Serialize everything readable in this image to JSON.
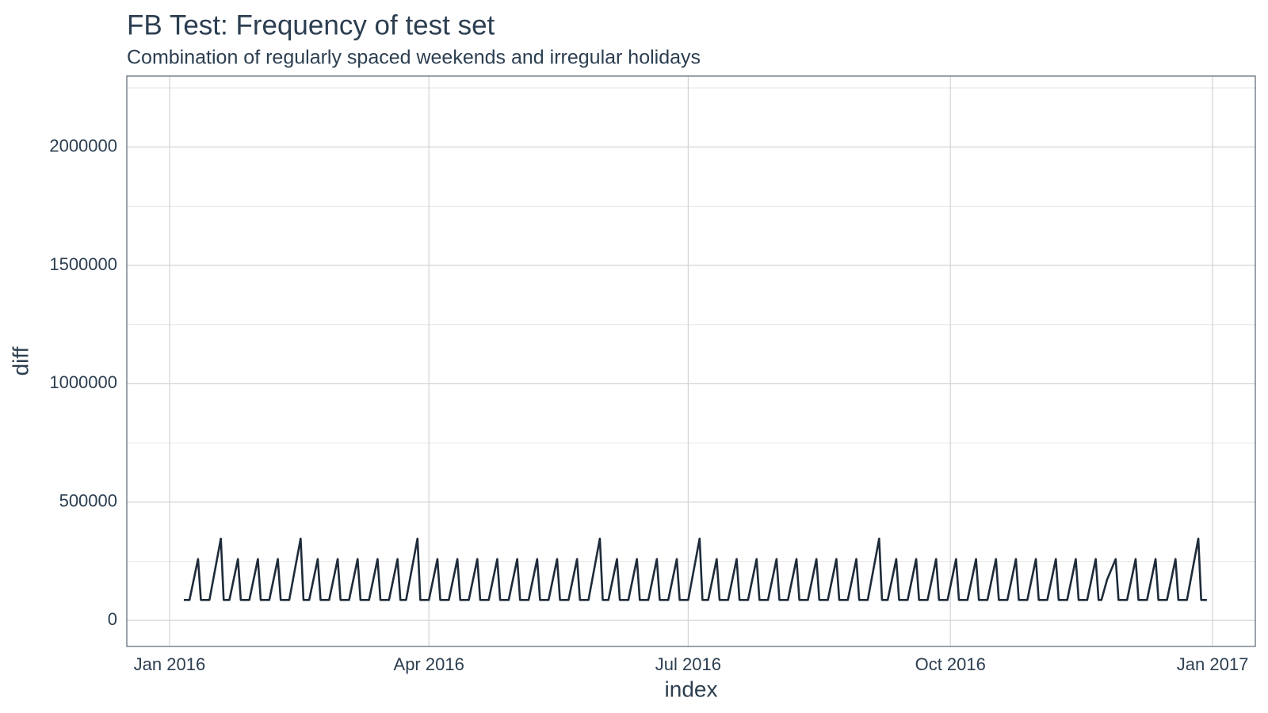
{
  "chart_data": {
    "type": "line",
    "title": "FB Test: Frequency of test set",
    "subtitle": "Combination of regularly spaced weekends and irregular holidays",
    "xlabel": "index",
    "ylabel": "diff",
    "color": "#1e2b3a",
    "grid": true,
    "xlim": [
      "2015-12-17",
      "2017-01-16"
    ],
    "xticks": [
      {
        "value": "2016-01-01",
        "label": "Jan 2016"
      },
      {
        "value": "2016-04-01",
        "label": "Apr 2016"
      },
      {
        "value": "2016-07-01",
        "label": "Jul 2016"
      },
      {
        "value": "2016-10-01",
        "label": "Oct 2016"
      },
      {
        "value": "2017-01-01",
        "label": "Jan 2017"
      }
    ],
    "ylim": [
      -110000,
      2300000
    ],
    "yticks": [
      0,
      500000,
      1000000,
      1500000,
      2000000
    ],
    "x": [
      "2016-01-06",
      "2016-01-07",
      "2016-01-08",
      "2016-01-11",
      "2016-01-12",
      "2016-01-13",
      "2016-01-14",
      "2016-01-15",
      "2016-01-19",
      "2016-01-20",
      "2016-01-21",
      "2016-01-22",
      "2016-01-25",
      "2016-01-26",
      "2016-01-27",
      "2016-01-28",
      "2016-01-29",
      "2016-02-01",
      "2016-02-02",
      "2016-02-03",
      "2016-02-04",
      "2016-02-05",
      "2016-02-08",
      "2016-02-09",
      "2016-02-10",
      "2016-02-11",
      "2016-02-12",
      "2016-02-16",
      "2016-02-17",
      "2016-02-18",
      "2016-02-19",
      "2016-02-22",
      "2016-02-23",
      "2016-02-24",
      "2016-02-25",
      "2016-02-26",
      "2016-02-29",
      "2016-03-01",
      "2016-03-02",
      "2016-03-03",
      "2016-03-04",
      "2016-03-07",
      "2016-03-08",
      "2016-03-09",
      "2016-03-10",
      "2016-03-11",
      "2016-03-14",
      "2016-03-15",
      "2016-03-16",
      "2016-03-17",
      "2016-03-18",
      "2016-03-21",
      "2016-03-22",
      "2016-03-23",
      "2016-03-24",
      "2016-03-28",
      "2016-03-29",
      "2016-03-30",
      "2016-03-31",
      "2016-04-01",
      "2016-04-04",
      "2016-04-05",
      "2016-04-06",
      "2016-04-07",
      "2016-04-08",
      "2016-04-11",
      "2016-04-12",
      "2016-04-13",
      "2016-04-14",
      "2016-04-15",
      "2016-04-18",
      "2016-04-19",
      "2016-04-20",
      "2016-04-21",
      "2016-04-22",
      "2016-04-25",
      "2016-04-26",
      "2016-04-27",
      "2016-04-28",
      "2016-04-29",
      "2016-05-02",
      "2016-05-03",
      "2016-05-04",
      "2016-05-05",
      "2016-05-06",
      "2016-05-09",
      "2016-05-10",
      "2016-05-11",
      "2016-05-12",
      "2016-05-13",
      "2016-05-16",
      "2016-05-17",
      "2016-05-18",
      "2016-05-19",
      "2016-05-20",
      "2016-05-23",
      "2016-05-24",
      "2016-05-25",
      "2016-05-26",
      "2016-05-27",
      "2016-05-31",
      "2016-06-01",
      "2016-06-02",
      "2016-06-03",
      "2016-06-06",
      "2016-06-07",
      "2016-06-08",
      "2016-06-09",
      "2016-06-10",
      "2016-06-13",
      "2016-06-14",
      "2016-06-15",
      "2016-06-16",
      "2016-06-17",
      "2016-06-20",
      "2016-06-21",
      "2016-06-22",
      "2016-06-23",
      "2016-06-24",
      "2016-06-27",
      "2016-06-28",
      "2016-06-29",
      "2016-06-30",
      "2016-07-01",
      "2016-07-05",
      "2016-07-06",
      "2016-07-07",
      "2016-07-08",
      "2016-07-11",
      "2016-07-12",
      "2016-07-13",
      "2016-07-14",
      "2016-07-15",
      "2016-07-18",
      "2016-07-19",
      "2016-07-20",
      "2016-07-21",
      "2016-07-22",
      "2016-07-25",
      "2016-07-26",
      "2016-07-27",
      "2016-07-28",
      "2016-07-29",
      "2016-08-01",
      "2016-08-02",
      "2016-08-03",
      "2016-08-04",
      "2016-08-05",
      "2016-08-08",
      "2016-08-09",
      "2016-08-10",
      "2016-08-11",
      "2016-08-12",
      "2016-08-15",
      "2016-08-16",
      "2016-08-17",
      "2016-08-18",
      "2016-08-19",
      "2016-08-22",
      "2016-08-23",
      "2016-08-24",
      "2016-08-25",
      "2016-08-26",
      "2016-08-29",
      "2016-08-30",
      "2016-08-31",
      "2016-09-01",
      "2016-09-02",
      "2016-09-06",
      "2016-09-07",
      "2016-09-08",
      "2016-09-09",
      "2016-09-12",
      "2016-09-13",
      "2016-09-14",
      "2016-09-15",
      "2016-09-16",
      "2016-09-19",
      "2016-09-20",
      "2016-09-21",
      "2016-09-22",
      "2016-09-23",
      "2016-09-26",
      "2016-09-27",
      "2016-09-28",
      "2016-09-29",
      "2016-09-30",
      "2016-10-03",
      "2016-10-04",
      "2016-10-05",
      "2016-10-06",
      "2016-10-07",
      "2016-10-10",
      "2016-10-11",
      "2016-10-12",
      "2016-10-13",
      "2016-10-14",
      "2016-10-17",
      "2016-10-18",
      "2016-10-19",
      "2016-10-20",
      "2016-10-21",
      "2016-10-24",
      "2016-10-25",
      "2016-10-26",
      "2016-10-27",
      "2016-10-28",
      "2016-10-31",
      "2016-11-01",
      "2016-11-02",
      "2016-11-03",
      "2016-11-04",
      "2016-11-07",
      "2016-11-08",
      "2016-11-09",
      "2016-11-10",
      "2016-11-11",
      "2016-11-14",
      "2016-11-15",
      "2016-11-16",
      "2016-11-17",
      "2016-11-18",
      "2016-11-21",
      "2016-11-22",
      "2016-11-23",
      "2016-11-25",
      "2016-11-28",
      "2016-11-29",
      "2016-11-30",
      "2016-12-01",
      "2016-12-02",
      "2016-12-05",
      "2016-12-06",
      "2016-12-07",
      "2016-12-08",
      "2016-12-09",
      "2016-12-12",
      "2016-12-13",
      "2016-12-14",
      "2016-12-15",
      "2016-12-16",
      "2016-12-19",
      "2016-12-20",
      "2016-12-21",
      "2016-12-22",
      "2016-12-23",
      "2016-12-27",
      "2016-12-28",
      "2016-12-29",
      "2016-12-30"
    ],
    "values": [
      86400,
      86400,
      86400,
      259200,
      86400,
      86400,
      86400,
      86400,
      345600,
      86400,
      86400,
      86400,
      259200,
      86400,
      86400,
      86400,
      86400,
      259200,
      86400,
      86400,
      86400,
      86400,
      259200,
      86400,
      86400,
      86400,
      86400,
      345600,
      86400,
      86400,
      86400,
      259200,
      86400,
      86400,
      86400,
      86400,
      259200,
      86400,
      86400,
      86400,
      86400,
      259200,
      86400,
      86400,
      86400,
      86400,
      259200,
      86400,
      86400,
      86400,
      86400,
      259200,
      86400,
      86400,
      86400,
      345600,
      86400,
      86400,
      86400,
      86400,
      259200,
      86400,
      86400,
      86400,
      86400,
      259200,
      86400,
      86400,
      86400,
      86400,
      259200,
      86400,
      86400,
      86400,
      86400,
      259200,
      86400,
      86400,
      86400,
      86400,
      259200,
      86400,
      86400,
      86400,
      86400,
      259200,
      86400,
      86400,
      86400,
      86400,
      259200,
      86400,
      86400,
      86400,
      86400,
      259200,
      86400,
      86400,
      86400,
      86400,
      345600,
      86400,
      86400,
      86400,
      259200,
      86400,
      86400,
      86400,
      86400,
      259200,
      86400,
      86400,
      86400,
      86400,
      259200,
      86400,
      86400,
      86400,
      86400,
      259200,
      86400,
      86400,
      86400,
      86400,
      345600,
      86400,
      86400,
      86400,
      259200,
      86400,
      86400,
      86400,
      86400,
      259200,
      86400,
      86400,
      86400,
      86400,
      259200,
      86400,
      86400,
      86400,
      86400,
      259200,
      86400,
      86400,
      86400,
      86400,
      259200,
      86400,
      86400,
      86400,
      86400,
      259200,
      86400,
      86400,
      86400,
      86400,
      259200,
      86400,
      86400,
      86400,
      86400,
      259200,
      86400,
      86400,
      86400,
      86400,
      345600,
      86400,
      86400,
      86400,
      259200,
      86400,
      86400,
      86400,
      86400,
      259200,
      86400,
      86400,
      86400,
      86400,
      259200,
      86400,
      86400,
      86400,
      86400,
      259200,
      86400,
      86400,
      86400,
      86400,
      259200,
      86400,
      86400,
      86400,
      86400,
      259200,
      86400,
      86400,
      86400,
      86400,
      259200,
      86400,
      86400,
      86400,
      86400,
      259200,
      86400,
      86400,
      86400,
      86400,
      259200,
      86400,
      86400,
      86400,
      86400,
      259200,
      86400,
      86400,
      86400,
      86400,
      259200,
      86400,
      86400,
      172800,
      259200,
      86400,
      86400,
      86400,
      86400,
      259200,
      86400,
      86400,
      86400,
      86400,
      259200,
      86400,
      86400,
      86400,
      86400,
      259200,
      86400,
      86400,
      86400,
      86400,
      345600,
      86400,
      86400,
      86400
    ]
  }
}
